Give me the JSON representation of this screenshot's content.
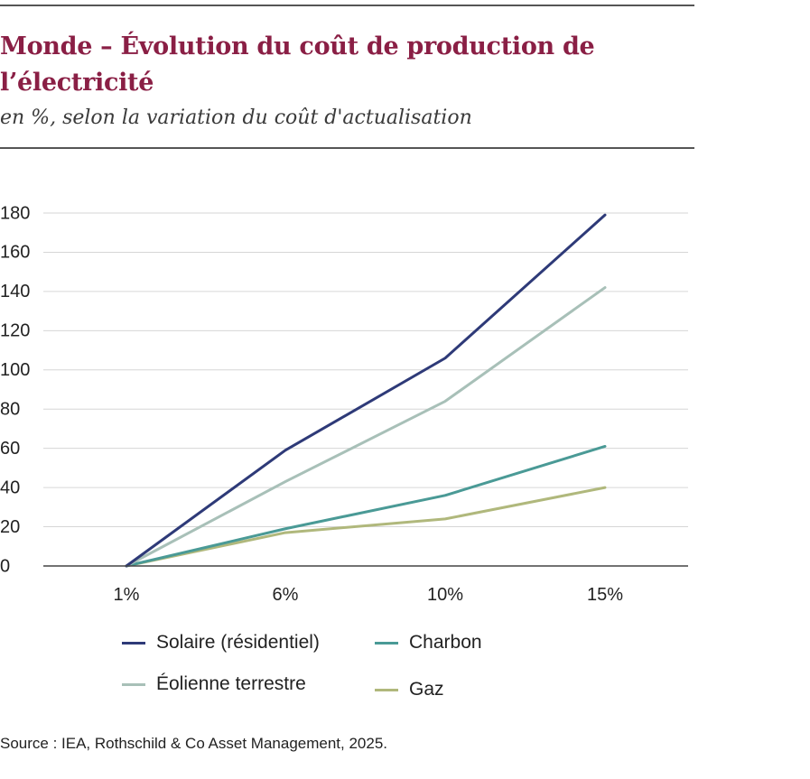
{
  "header": {
    "title": "Monde –  Évolution du coût de production de l’électricité",
    "subtitle": "en %, selon la variation du coût d'actualisation"
  },
  "chart_data": {
    "type": "line",
    "categories": [
      "1%",
      "6%",
      "10%",
      "15%"
    ],
    "ylim": [
      0,
      180
    ],
    "yticks": [
      0,
      20,
      40,
      60,
      80,
      100,
      120,
      140,
      160,
      180
    ],
    "grid": true,
    "legend_position": "bottom",
    "series": [
      {
        "name": "Solaire (résidentiel)",
        "color": "#2e3a78",
        "values": [
          0,
          59,
          106,
          179
        ]
      },
      {
        "name": "Éolienne terrestre",
        "color": "#a8c0b8",
        "values": [
          0,
          43,
          84,
          142
        ]
      },
      {
        "name": "Charbon",
        "color": "#4a9a96",
        "values": [
          0,
          19,
          36,
          61
        ]
      },
      {
        "name": "Gaz",
        "color": "#b0b87c",
        "values": [
          0,
          17,
          24,
          40
        ]
      }
    ]
  },
  "footer": {
    "source": "Source : IEA, Rothschild & Co Asset Management, 2025."
  }
}
